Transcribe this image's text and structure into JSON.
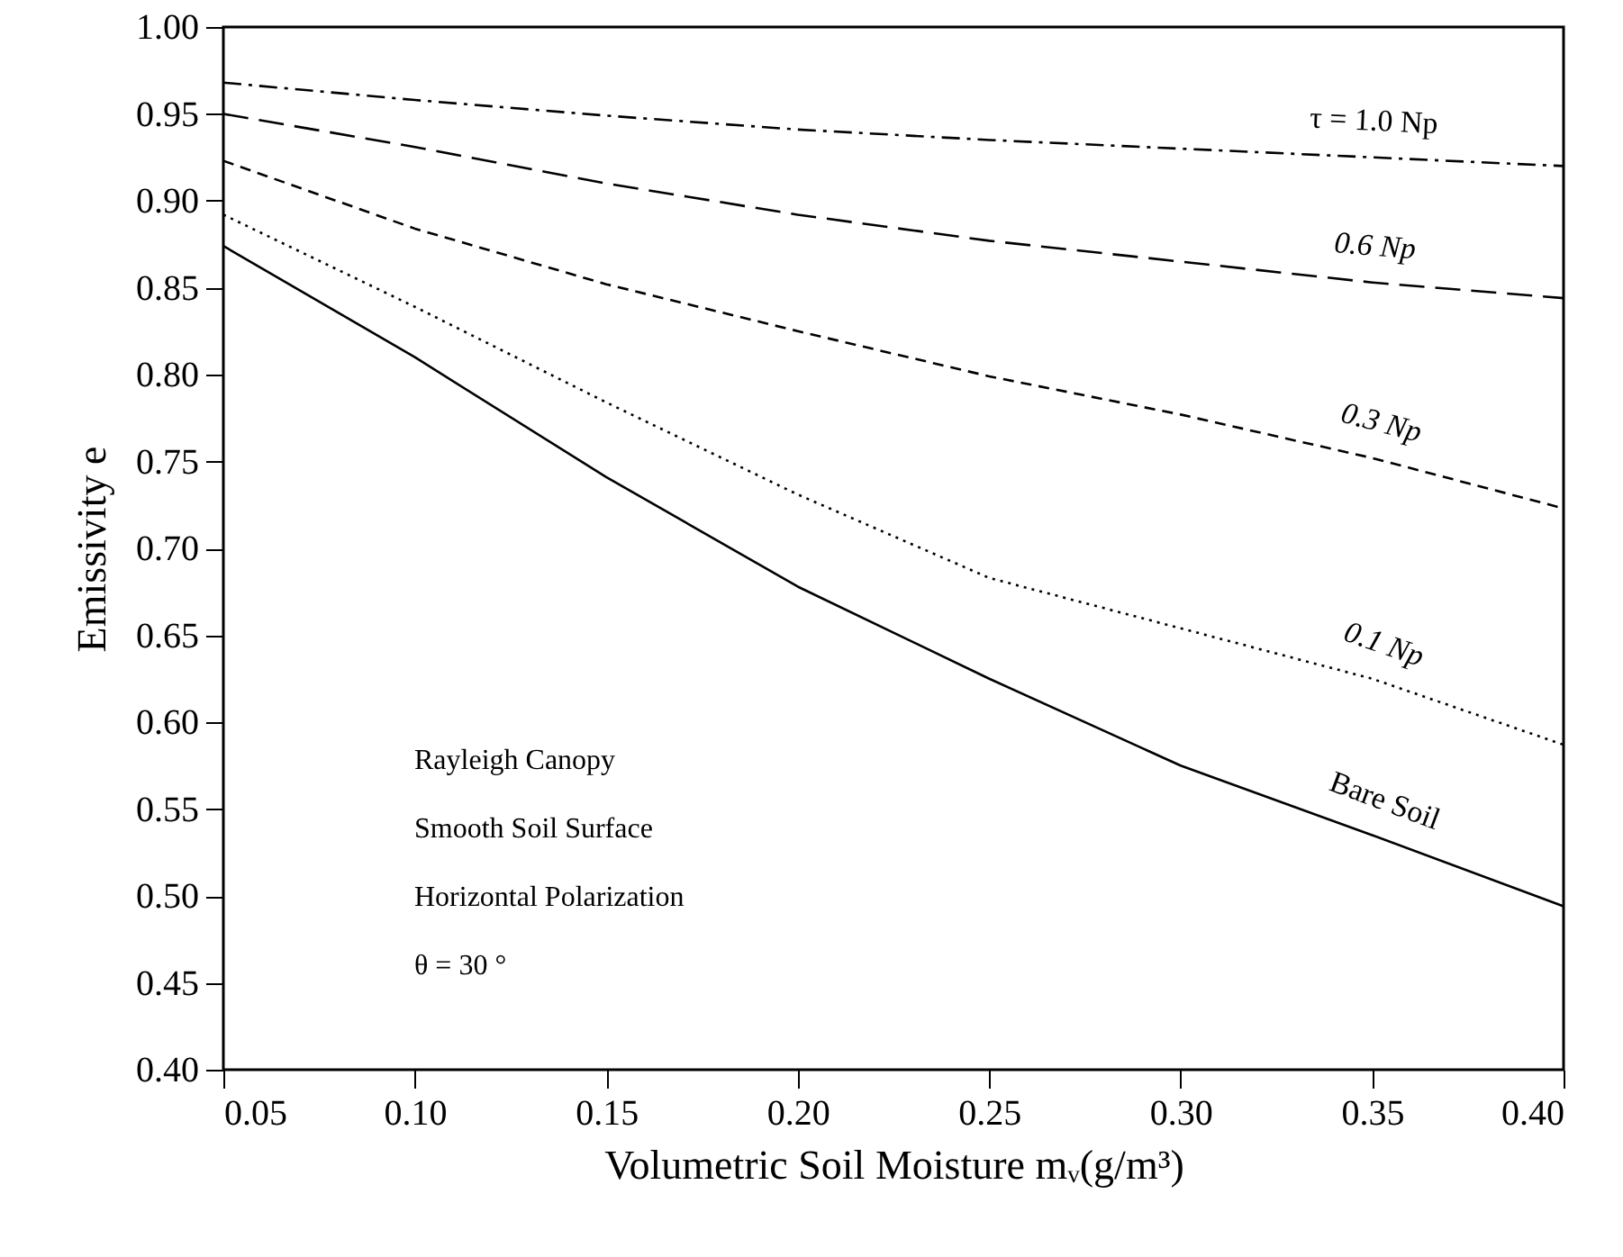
{
  "chart_data": {
    "type": "line",
    "xlabel": "Volumetric Soil Moisture mᵥ(g/m³)",
    "ylabel": "Emissivity e",
    "x": [
      0.05,
      0.1,
      0.15,
      0.2,
      0.25,
      0.3,
      0.35,
      0.4
    ],
    "series": [
      {
        "name": "τ = 1.0 Np",
        "color": "#000000",
        "line_style": "dashdot",
        "values": [
          0.968,
          0.958,
          0.949,
          0.941,
          0.935,
          0.93,
          0.925,
          0.92
        ]
      },
      {
        "name": "0.6 Np",
        "color": "#000000",
        "line_style": "longdash",
        "values": [
          0.95,
          0.931,
          0.91,
          0.892,
          0.877,
          0.865,
          0.853,
          0.844
        ]
      },
      {
        "name": "0.3 Np",
        "color": "#000000",
        "line_style": "dashed",
        "values": [
          0.923,
          0.884,
          0.852,
          0.825,
          0.799,
          0.777,
          0.752,
          0.723
        ]
      },
      {
        "name": "0.1 Np",
        "color": "#000000",
        "line_style": "dotted",
        "values": [
          0.892,
          0.839,
          0.784,
          0.731,
          0.683,
          0.654,
          0.625,
          0.587
        ]
      },
      {
        "name": "Bare Soil",
        "color": "#000000",
        "line_style": "solid",
        "values": [
          0.874,
          0.81,
          0.741,
          0.678,
          0.625,
          0.575,
          0.535,
          0.494
        ]
      }
    ],
    "xlim": [
      0.05,
      0.4
    ],
    "xticks": [
      {
        "value": 0.05,
        "label": "0.05"
      },
      {
        "value": 0.1,
        "label": "0.10"
      },
      {
        "value": 0.15,
        "label": "0.15"
      },
      {
        "value": 0.2,
        "label": "0.20"
      },
      {
        "value": 0.25,
        "label": "0.25"
      },
      {
        "value": 0.3,
        "label": "0.30"
      },
      {
        "value": 0.35,
        "label": "0.35"
      },
      {
        "value": 0.4,
        "label": "0.40"
      }
    ],
    "ylim": [
      0.4,
      1.0
    ],
    "yticks": [
      {
        "value": 0.4,
        "label": "0.40"
      },
      {
        "value": 0.45,
        "label": "0.45"
      },
      {
        "value": 0.5,
        "label": "0.50"
      },
      {
        "value": 0.55,
        "label": "0.55"
      },
      {
        "value": 0.6,
        "label": "0.60"
      },
      {
        "value": 0.65,
        "label": "0.65"
      },
      {
        "value": 0.7,
        "label": "0.70"
      },
      {
        "value": 0.75,
        "label": "0.75"
      },
      {
        "value": 0.8,
        "label": "0.80"
      },
      {
        "value": 0.85,
        "label": "0.85"
      },
      {
        "value": 0.9,
        "label": "0.90"
      },
      {
        "value": 0.95,
        "label": "0.95"
      },
      {
        "value": 1.0,
        "label": "1.00"
      }
    ],
    "annotations": [
      "Rayleigh Canopy",
      "Smooth Soil Surface",
      "Horizontal Polarization",
      "θ = 30 °"
    ],
    "grid": false,
    "marker": "none"
  }
}
